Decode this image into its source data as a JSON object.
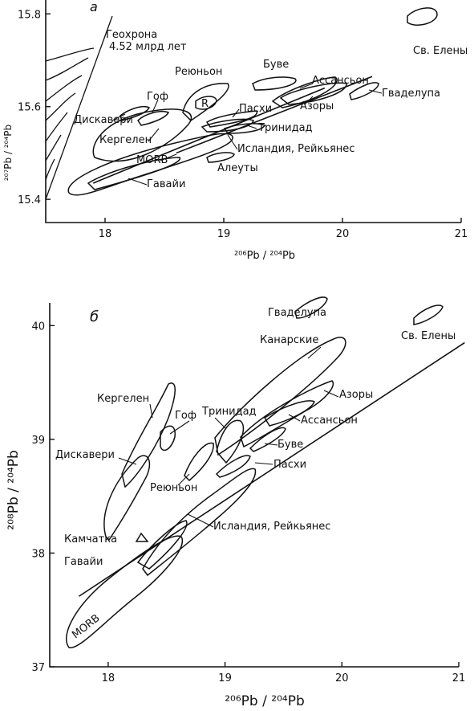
{
  "chart_data": [
    {
      "panel_label": "а",
      "type": "scatter",
      "xlabel": "²⁰⁶Pb / ²⁰⁴Pb",
      "ylabel": "²⁰⁷Pb / ²⁰⁴Pb",
      "xlim": [
        17.5,
        21.0
      ],
      "ylim": [
        15.35,
        15.83
      ],
      "x_ticks": [
        "18",
        "19",
        "20",
        "21"
      ],
      "y_ticks": [
        "15.4",
        "15.6",
        "15.8"
      ],
      "grid": false,
      "geochron_label": [
        "Геохрона",
        "4.52 млрд лет"
      ],
      "fields": [
        {
          "name": "Св. Елены",
          "center": [
            20.72,
            15.8
          ]
        },
        {
          "name": "Буве",
          "center": [
            19.4,
            15.65
          ]
        },
        {
          "name": "Ассансьон",
          "center": [
            19.65,
            15.62
          ]
        },
        {
          "name": "Азоры",
          "center": [
            19.6,
            15.62
          ]
        },
        {
          "name": "Гваделупа",
          "center": [
            20.15,
            15.63
          ]
        },
        {
          "name": "Реюньон",
          "center": [
            18.6,
            15.6
          ]
        },
        {
          "name": "R",
          "center": [
            18.75,
            15.61
          ]
        },
        {
          "name": "Гоф",
          "center": [
            18.38,
            15.59
          ]
        },
        {
          "name": "Дискавери",
          "center": [
            17.95,
            15.6
          ]
        },
        {
          "name": "Кергелен",
          "center": [
            18.3,
            15.54
          ]
        },
        {
          "name": "Пасхи",
          "center": [
            19.1,
            15.57
          ]
        },
        {
          "name": "Тринидад",
          "center": [
            19.1,
            15.56
          ]
        },
        {
          "name": "Исландия, Рейкьянес",
          "center": [
            19.0,
            15.52
          ]
        },
        {
          "name": "MORB",
          "center": [
            18.6,
            15.48
          ]
        },
        {
          "name": "Алеуты",
          "center": [
            18.95,
            15.49
          ]
        },
        {
          "name": "Гавайи",
          "center": [
            18.3,
            15.47
          ]
        }
      ],
      "trend_lines": [
        {
          "x": [
            17.9,
            19.85
          ],
          "y": [
            15.435,
            15.64
          ]
        },
        {
          "x": [
            18.6,
            20.25
          ],
          "y": [
            15.5,
            15.665
          ]
        }
      ]
    },
    {
      "panel_label": "б",
      "type": "scatter",
      "xlabel": "²⁰⁶Pb / ²⁰⁴Pb",
      "ylabel": "²⁰⁸Pb / ²⁰⁴Pb",
      "xlim": [
        17.5,
        21.0
      ],
      "ylim": [
        37.0,
        40.2
      ],
      "x_ticks": [
        "18",
        "19",
        "20",
        "21"
      ],
      "y_ticks": [
        "37",
        "38",
        "39",
        "40"
      ],
      "grid": false,
      "fields": [
        {
          "name": "Гваделупа",
          "center": [
            20.05,
            40.12
          ]
        },
        {
          "name": "Св. Елены",
          "center": [
            20.8,
            40.08
          ]
        },
        {
          "name": "Канарские",
          "center": [
            19.65,
            39.4
          ]
        },
        {
          "name": "Кергелен",
          "center": [
            18.2,
            39.0
          ]
        },
        {
          "name": "Гоф",
          "center": [
            18.55,
            39.0
          ]
        },
        {
          "name": "Тринидад",
          "center": [
            19.2,
            38.95
          ]
        },
        {
          "name": "Азоры",
          "center": [
            19.85,
            39.3
          ]
        },
        {
          "name": "Ассансьон",
          "center": [
            19.7,
            39.15
          ]
        },
        {
          "name": "Буве",
          "center": [
            19.35,
            38.95
          ]
        },
        {
          "name": "Дискавери",
          "center": [
            18.1,
            38.7
          ]
        },
        {
          "name": "Реюньон",
          "center": [
            18.6,
            38.6
          ]
        },
        {
          "name": "Пасхи",
          "center": [
            19.15,
            38.8
          ]
        },
        {
          "name": "Исландия, Рейкьянес",
          "center": [
            18.7,
            38.3
          ]
        },
        {
          "name": "Камчатка",
          "center": [
            18.3,
            38.1
          ]
        },
        {
          "name": "Гавайи",
          "center": [
            18.4,
            38.0
          ]
        },
        {
          "name": "MORB",
          "center": [
            18.0,
            37.4
          ]
        }
      ],
      "trend_lines": [
        {
          "x": [
            17.75,
            21.05
          ],
          "y": [
            37.62,
            39.85
          ]
        }
      ]
    }
  ]
}
